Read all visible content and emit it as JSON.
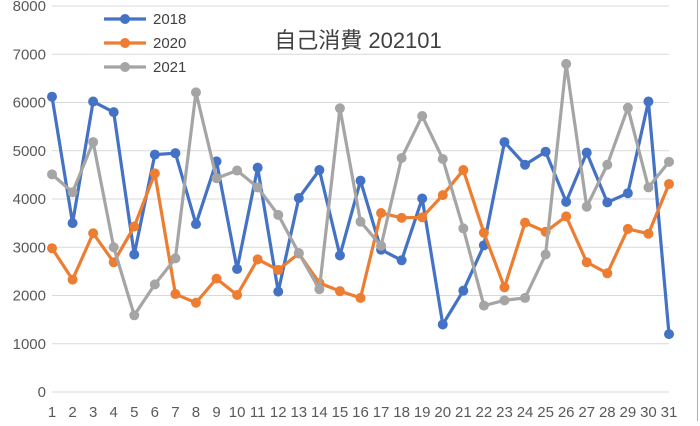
{
  "chart_data": {
    "type": "line",
    "title": "自己消費 202101",
    "xlabel": "",
    "ylabel": "",
    "ylim": [
      0,
      8000
    ],
    "yticks": [
      0,
      1000,
      2000,
      3000,
      4000,
      5000,
      6000,
      7000,
      8000
    ],
    "grid": true,
    "legend_position": "top-left-inside",
    "categories": [
      "1",
      "2",
      "3",
      "4",
      "5",
      "6",
      "7",
      "8",
      "9",
      "10",
      "11",
      "12",
      "13",
      "14",
      "15",
      "16",
      "17",
      "18",
      "19",
      "20",
      "21",
      "22",
      "23",
      "24",
      "25",
      "26",
      "27",
      "28",
      "29",
      "30",
      "31"
    ],
    "series": [
      {
        "name": "2018",
        "color": "#4472c4",
        "values": [
          6120,
          3500,
          6020,
          5800,
          2850,
          4920,
          4950,
          3480,
          4780,
          2550,
          4650,
          2080,
          4020,
          4600,
          2830,
          4380,
          2950,
          2730,
          4010,
          1400,
          2100,
          3040,
          5180,
          4710,
          4980,
          3940,
          4960,
          3930,
          4120,
          6020,
          1200
        ]
      },
      {
        "name": "2020",
        "color": "#ed7d31",
        "values": [
          2980,
          2330,
          3290,
          2690,
          3430,
          4530,
          2030,
          1850,
          2350,
          2010,
          2750,
          2530,
          2870,
          2260,
          2090,
          1950,
          3710,
          3610,
          3620,
          4080,
          4600,
          3300,
          2170,
          3510,
          3320,
          3640,
          2690,
          2460,
          3380,
          3280,
          4310
        ]
      },
      {
        "name": "2021",
        "color": "#a5a5a5",
        "values": [
          4510,
          4140,
          5180,
          3000,
          1590,
          2230,
          2770,
          6210,
          4430,
          4590,
          4240,
          3670,
          2880,
          2130,
          5880,
          3530,
          3030,
          4850,
          5720,
          4830,
          3390,
          1790,
          1900,
          1950,
          2850,
          6800,
          3840,
          4710,
          5890,
          4240,
          4770
        ]
      }
    ]
  },
  "legend": {
    "items": [
      "2018",
      "2020",
      "2021"
    ]
  },
  "title": "自己消費 202101"
}
